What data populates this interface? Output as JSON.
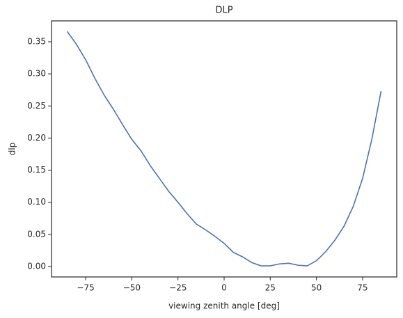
{
  "chart_data": {
    "type": "line",
    "title": "DLP",
    "x_label": "viewing zenith angle [deg]",
    "y_label": "dlp",
    "x": [
      -85,
      -80,
      -75,
      -70,
      -65,
      -60,
      -55,
      -50,
      -45,
      -40,
      -35,
      -30,
      -25,
      -20,
      -15,
      -10,
      -5,
      0,
      5,
      10,
      15,
      20,
      25,
      30,
      35,
      40,
      45,
      50,
      55,
      60,
      65,
      70,
      75,
      80,
      85
    ],
    "series": [
      {
        "name": "dlp",
        "color": "#4c72b0",
        "values": [
          0.366,
          0.346,
          0.322,
          0.293,
          0.267,
          0.245,
          0.221,
          0.198,
          0.18,
          0.157,
          0.137,
          0.117,
          0.1,
          0.082,
          0.066,
          0.057,
          0.047,
          0.036,
          0.022,
          0.015,
          0.006,
          0.001,
          0.001,
          0.004,
          0.005,
          0.002,
          0.001,
          0.009,
          0.023,
          0.041,
          0.063,
          0.094,
          0.137,
          0.198,
          0.273
        ]
      }
    ],
    "xlim": [
      -93.5,
      93.5
    ],
    "xticks": [
      {
        "value": -75,
        "label": "−75"
      },
      {
        "value": -50,
        "label": "−50"
      },
      {
        "value": -25,
        "label": "−25"
      },
      0,
      25,
      50,
      75
    ],
    "ylim": [
      -0.0163,
      0.3825
    ],
    "yticks": [
      {
        "value": 0,
        "label": "0.00"
      },
      {
        "value": 0.05,
        "label": "0.05"
      },
      {
        "value": 0.1,
        "label": "0.10"
      },
      {
        "value": 0.15,
        "label": "0.15"
      },
      {
        "value": 0.2,
        "label": "0.20"
      },
      {
        "value": 0.25,
        "label": "0.25"
      },
      {
        "value": 0.3,
        "label": "0.30"
      },
      {
        "value": 0.35,
        "label": "0.35"
      }
    ],
    "grid": false
  }
}
